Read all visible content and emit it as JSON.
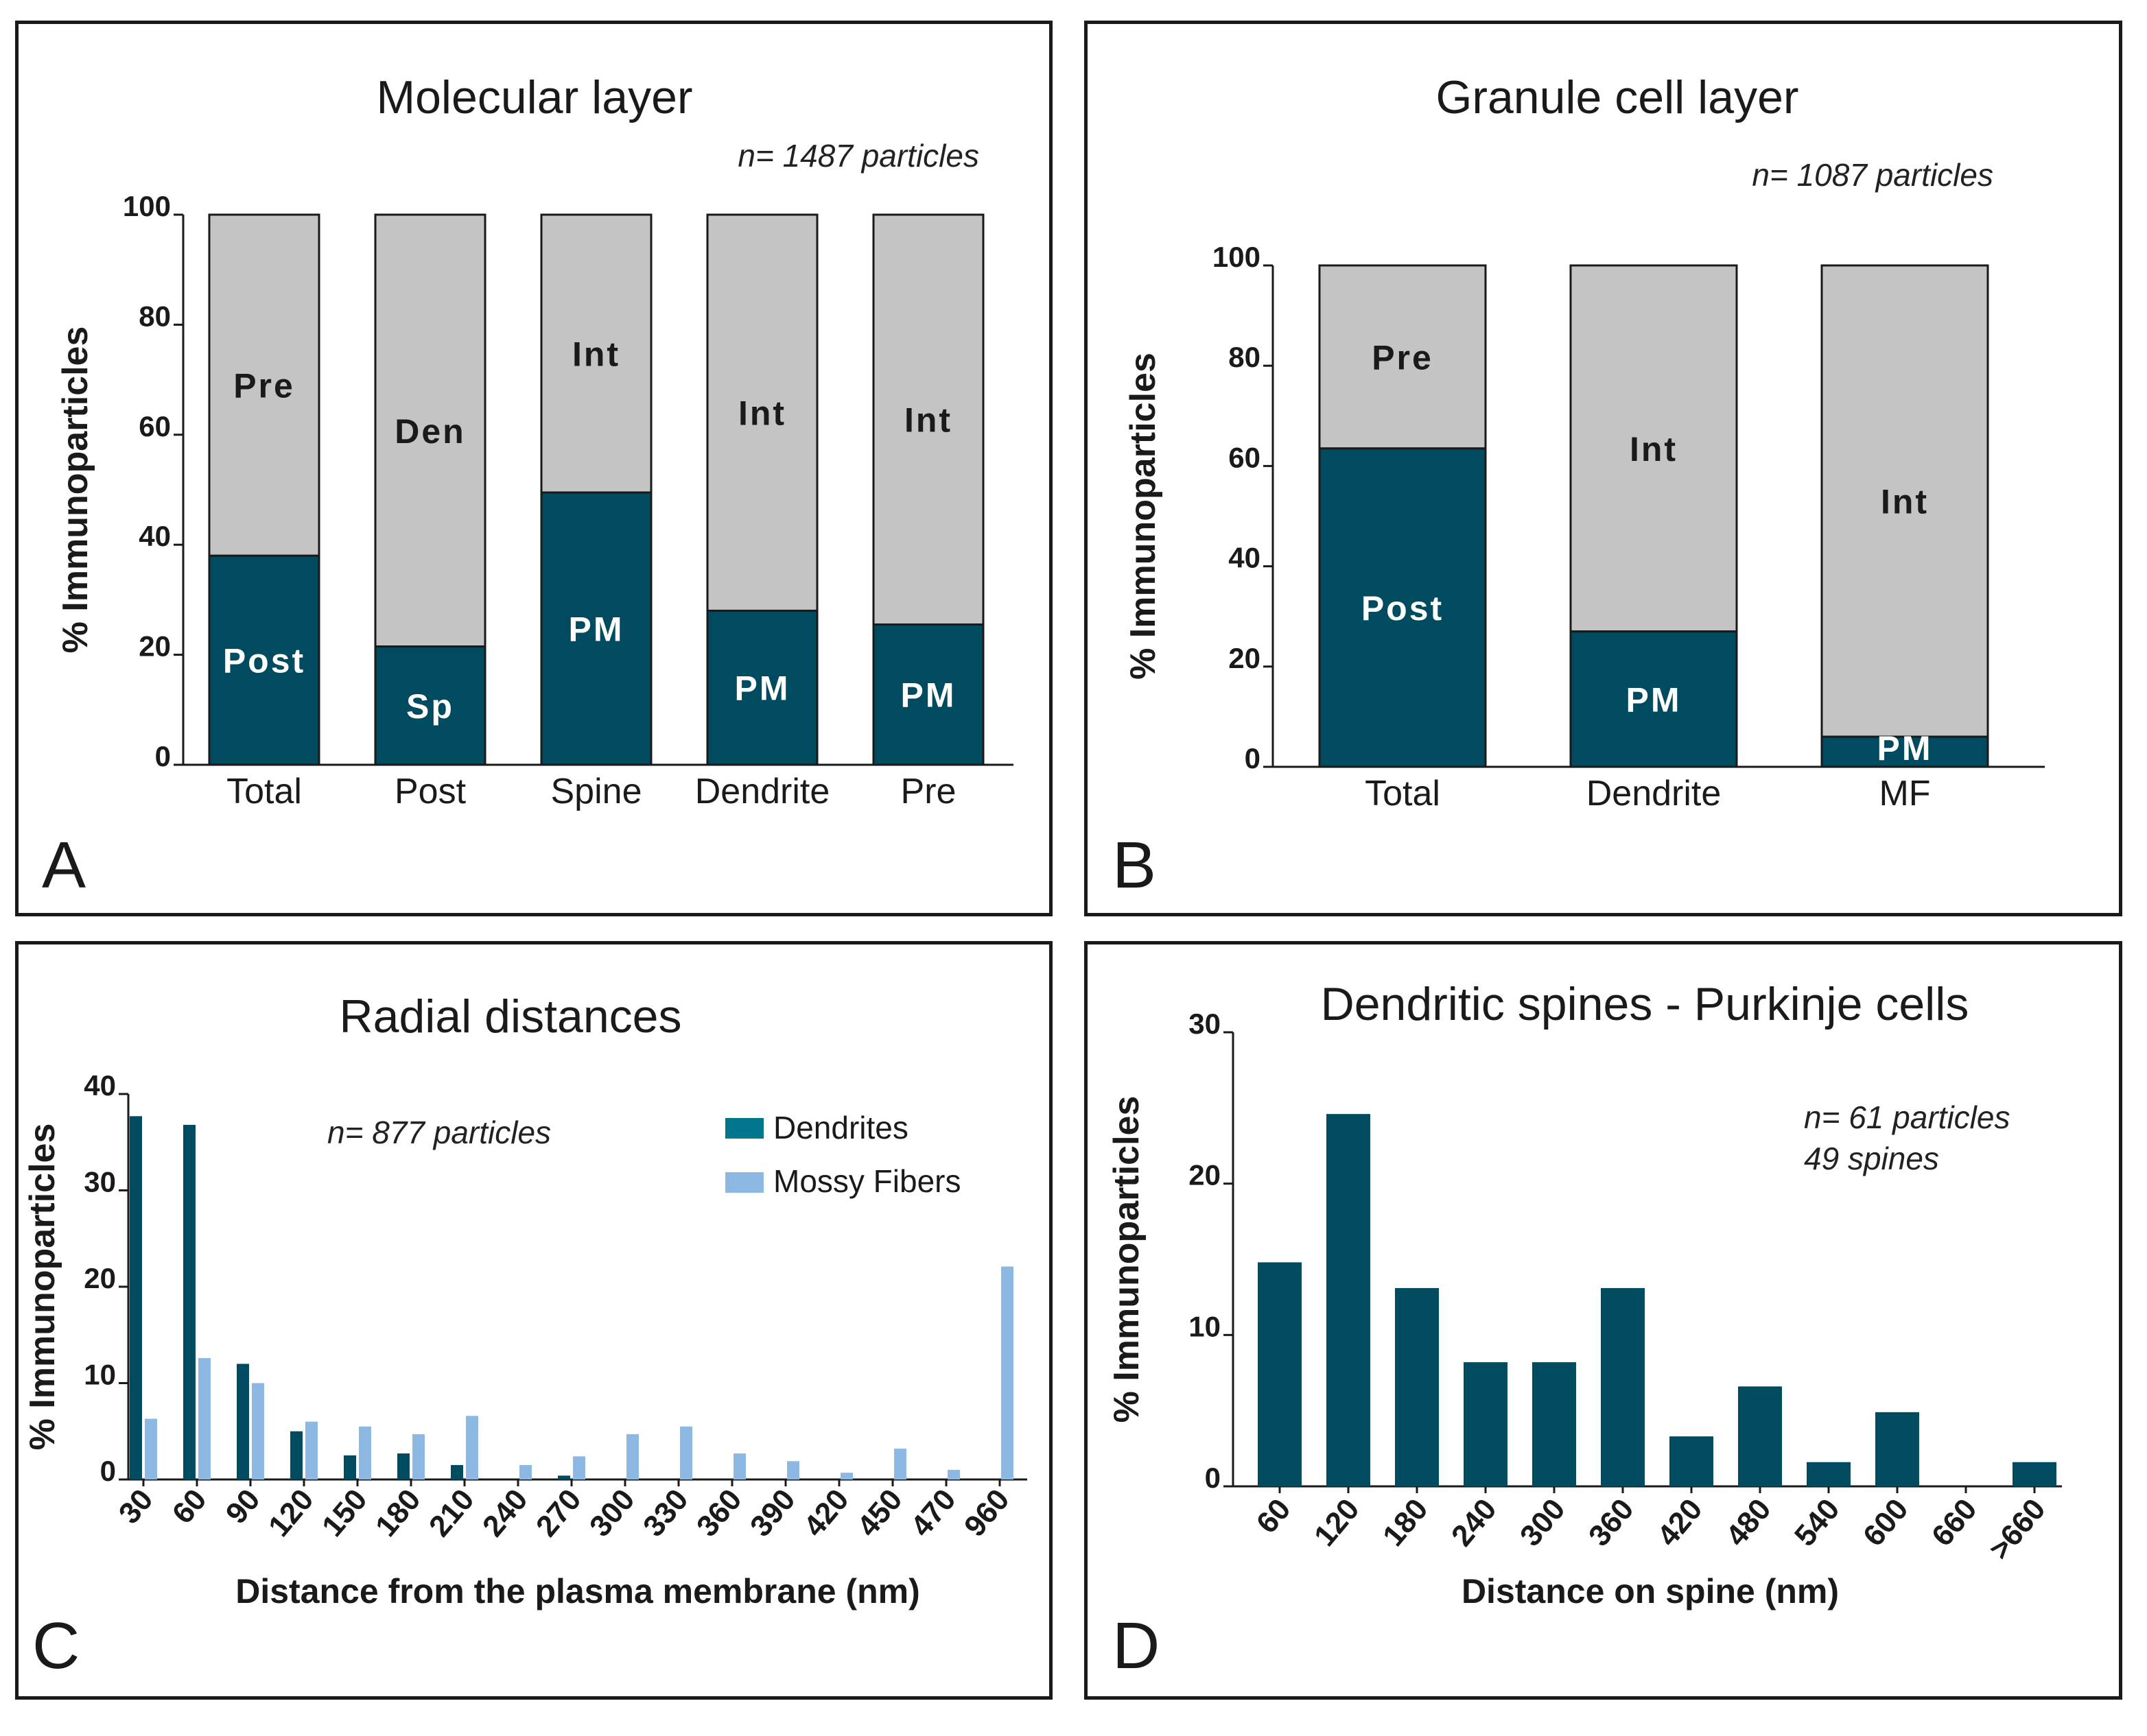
{
  "colors": {
    "dark": "#004b5f",
    "gray": "#c4c4c4",
    "light": "#8db8e3",
    "legend_dark": "#00768d"
  },
  "panel_labels": {
    "a": "A",
    "b": "B",
    "c": "C",
    "d": "D"
  },
  "chart_data": [
    {
      "id": "A",
      "type": "bar",
      "stacked": true,
      "title": "Molecular layer",
      "annotation": "n= 1487 particles",
      "ylabel": "% Immunoparticles",
      "xlabel": "",
      "ylim": [
        0,
        100
      ],
      "yticks": [
        "0",
        "20",
        "40",
        "60",
        "80",
        "100"
      ],
      "categories": [
        "Total",
        "Post",
        "Spine",
        "Dendrite",
        "Pre"
      ],
      "bottom_values": [
        38,
        21.5,
        49.5,
        28,
        25.5
      ],
      "bottom_labels": [
        "Post",
        "Sp",
        "PM",
        "PM",
        "PM"
      ],
      "top_labels": [
        "Pre",
        "Den",
        "Int",
        "Int",
        "Int"
      ]
    },
    {
      "id": "B",
      "type": "bar",
      "stacked": true,
      "title": "Granule cell layer",
      "annotation": "n= 1087 particles",
      "ylabel": "% Immunoparticles",
      "xlabel": "",
      "ylim": [
        0,
        100
      ],
      "yticks": [
        "0",
        "20",
        "40",
        "60",
        "80",
        "100"
      ],
      "categories": [
        "Total",
        "Dendrite",
        "MF"
      ],
      "bottom_values": [
        63.5,
        27,
        6
      ],
      "bottom_labels": [
        "Post",
        "PM",
        "PM"
      ],
      "top_labels": [
        "Pre",
        "Int",
        "Int"
      ]
    },
    {
      "id": "C",
      "type": "bar",
      "title": "Radial distances",
      "annotation": "n= 877 particles",
      "ylabel": "% Immunoparticles",
      "xlabel": "Distance from the plasma membrane (nm)",
      "ylim": [
        0,
        40
      ],
      "yticks": [
        "0",
        "10",
        "20",
        "30",
        "40"
      ],
      "categories": [
        "30",
        "60",
        "90",
        "120",
        "150",
        "180",
        "210",
        "240",
        "270",
        "300",
        "330",
        "360",
        "390",
        "420",
        "450",
        "470",
        "960"
      ],
      "series": [
        {
          "name": "Dendrites",
          "values": [
            37.7,
            36.8,
            12,
            5,
            2.5,
            2.7,
            1.5,
            0,
            0.4,
            0,
            0,
            0,
            0,
            0,
            0,
            0,
            0
          ]
        },
        {
          "name": "Mossy Fibers",
          "values": [
            6.3,
            12.6,
            10,
            6,
            5.5,
            4.7,
            6.6,
            1.5,
            2.4,
            4.7,
            5.5,
            2.7,
            1.9,
            0.7,
            3.2,
            1,
            22.1
          ]
        }
      ],
      "legend_position": "top-right"
    },
    {
      "id": "D",
      "type": "bar",
      "title": "Dendritic spines - Purkinje cells",
      "annotation": [
        "n= 61 particles",
        "49 spines"
      ],
      "ylabel": "% Immunoparticles",
      "xlabel": "Distance on spine (nm)",
      "ylim": [
        0,
        30
      ],
      "yticks": [
        "0",
        "10",
        "20",
        "30"
      ],
      "categories": [
        "60",
        "120",
        "180",
        "240",
        "300",
        "360",
        "420",
        "480",
        "540",
        "600",
        "660",
        ">660"
      ],
      "values": [
        14.8,
        24.6,
        13.1,
        8.2,
        8.2,
        13.1,
        3.3,
        6.6,
        1.6,
        4.9,
        0,
        1.6
      ]
    }
  ]
}
